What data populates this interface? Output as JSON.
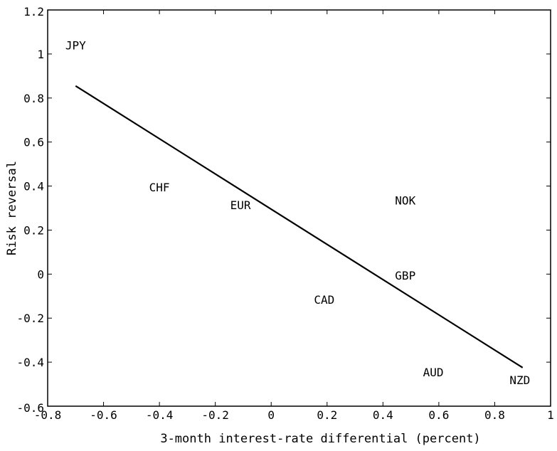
{
  "chart_data": {
    "type": "scatter",
    "title": "",
    "xlabel": "3-month interest-rate differential (percent)",
    "ylabel": "Risk reversal",
    "xlim": [
      -0.8,
      1.0
    ],
    "ylim": [
      -0.6,
      1.2
    ],
    "xticks": [
      -0.8,
      -0.6,
      -0.4,
      -0.2,
      0,
      0.2,
      0.4,
      0.6,
      0.8,
      1
    ],
    "xtick_labels": [
      "-0.8",
      "-0.6",
      "-0.4",
      "-0.2",
      "0",
      "0.2",
      "0.4",
      "0.6",
      "0.8",
      "1"
    ],
    "yticks": [
      -0.6,
      -0.4,
      -0.2,
      0,
      0.2,
      0.4,
      0.6,
      0.8,
      1,
      1.2
    ],
    "ytick_labels": [
      "-0.6",
      "-0.4",
      "-0.2",
      "0",
      "0.2",
      "0.4",
      "0.6",
      "0.8",
      "1",
      "1.2"
    ],
    "grid": false,
    "points": [
      {
        "label": "JPY",
        "x": -0.7,
        "y": 1.04
      },
      {
        "label": "CHF",
        "x": -0.4,
        "y": 0.395
      },
      {
        "label": "EUR",
        "x": -0.11,
        "y": 0.315
      },
      {
        "label": "NOK",
        "x": 0.48,
        "y": 0.335
      },
      {
        "label": "GBP",
        "x": 0.48,
        "y": -0.005
      },
      {
        "label": "CAD",
        "x": 0.19,
        "y": -0.115
      },
      {
        "label": "AUD",
        "x": 0.58,
        "y": -0.445
      },
      {
        "label": "NZD",
        "x": 0.89,
        "y": -0.48
      }
    ],
    "fit_line": {
      "x": [
        -0.7,
        0.9
      ],
      "y": [
        0.855,
        -0.425
      ]
    },
    "colors": {
      "line": "#000000",
      "axes": "#000000",
      "text": "#000000"
    }
  }
}
